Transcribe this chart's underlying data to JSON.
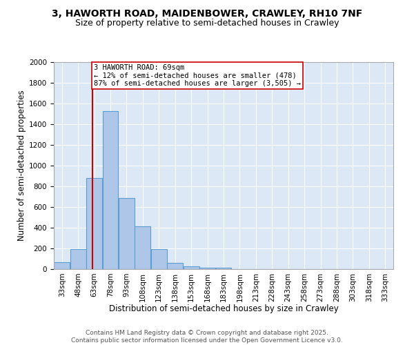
{
  "title_line1": "3, HAWORTH ROAD, MAIDENBOWER, CRAWLEY, RH10 7NF",
  "title_line2": "Size of property relative to semi-detached houses in Crawley",
  "xlabel": "Distribution of semi-detached houses by size in Crawley",
  "ylabel": "Number of semi-detached properties",
  "bin_labels": [
    "33sqm",
    "48sqm",
    "63sqm",
    "78sqm",
    "93sqm",
    "108sqm",
    "123sqm",
    "138sqm",
    "153sqm",
    "168sqm",
    "183sqm",
    "198sqm",
    "213sqm",
    "228sqm",
    "243sqm",
    "258sqm",
    "273sqm",
    "288sqm",
    "303sqm",
    "318sqm",
    "333sqm"
  ],
  "bin_left_edges": [
    33,
    48,
    63,
    78,
    93,
    108,
    123,
    138,
    153,
    168,
    183,
    198,
    213,
    228,
    243,
    258,
    273,
    288,
    303,
    318,
    333
  ],
  "bin_width": 15,
  "counts": [
    65,
    195,
    878,
    1530,
    690,
    415,
    195,
    60,
    30,
    15,
    15,
    0,
    0,
    0,
    0,
    0,
    0,
    0,
    0,
    0,
    0
  ],
  "bar_color": "#aec6e8",
  "bar_edge_color": "#5a9fd4",
  "property_size": 69,
  "property_line_color": "#cc0000",
  "annotation_text": "3 HAWORTH ROAD: 69sqm\n← 12% of semi-detached houses are smaller (478)\n87% of semi-detached houses are larger (3,505) →",
  "annotation_box_color": "#ffffff",
  "annotation_box_edge_color": "#cc0000",
  "ylim": [
    0,
    2000
  ],
  "yticks": [
    0,
    200,
    400,
    600,
    800,
    1000,
    1200,
    1400,
    1600,
    1800,
    2000
  ],
  "background_color": "#dce8f5",
  "grid_color": "#ffffff",
  "footer_text": "Contains HM Land Registry data © Crown copyright and database right 2025.\nContains public sector information licensed under the Open Government Licence v3.0.",
  "title_fontsize": 10,
  "subtitle_fontsize": 9,
  "axis_label_fontsize": 8.5,
  "tick_fontsize": 7.5,
  "annotation_fontsize": 7.5,
  "footer_fontsize": 6.5
}
